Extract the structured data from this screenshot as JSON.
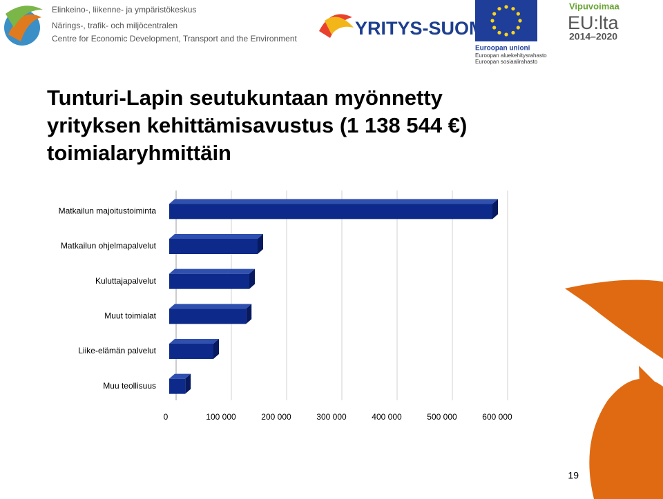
{
  "header": {
    "ely_lines": [
      "Elinkeino-, liikenne- ja ympäristökeskus",
      "Närings-, trafik- och miljöcentralen",
      "Centre for Economic Development, Transport and the Environment"
    ],
    "yritys_suomi": "YRITYS-SUOMI",
    "eu_lines": [
      "Euroopan unioni",
      "Euroopan aluekehitysrahasto",
      "Euroopan sosiaalirahasto"
    ],
    "vipuvoimaa": "Vipuvoimaa",
    "eulta": "EU:lta",
    "period": "2014–2020"
  },
  "chart_data": {
    "type": "hbar",
    "title_lines": [
      "Tunturi-Lapin seutukuntaan myönnetty",
      "yrityksen kehittämisavustus (1 138 544 €)",
      "toimialaryhmittäin"
    ],
    "categories": [
      "Matkailun majoitustoiminta",
      "Matkailun ohjelmapalvelut",
      "Kuluttajapalvelut",
      "Muut toimialat",
      "Liike-elämän palvelut",
      "Muu teollisuus"
    ],
    "values": [
      585000,
      160000,
      145000,
      139000,
      80000,
      29000
    ],
    "color": "#0d2a8a",
    "xlim": [
      0,
      600000
    ],
    "xticks": [
      0,
      {
        "value": 100000,
        "label": "100 000"
      },
      {
        "value": 200000,
        "label": "200 000"
      },
      {
        "value": 300000,
        "label": "300 000"
      },
      {
        "value": 400000,
        "label": "400 000"
      },
      {
        "value": 500000,
        "label": "500 000"
      },
      {
        "value": 600000,
        "label": "600 000"
      }
    ],
    "grid": true
  },
  "page_number": "19"
}
